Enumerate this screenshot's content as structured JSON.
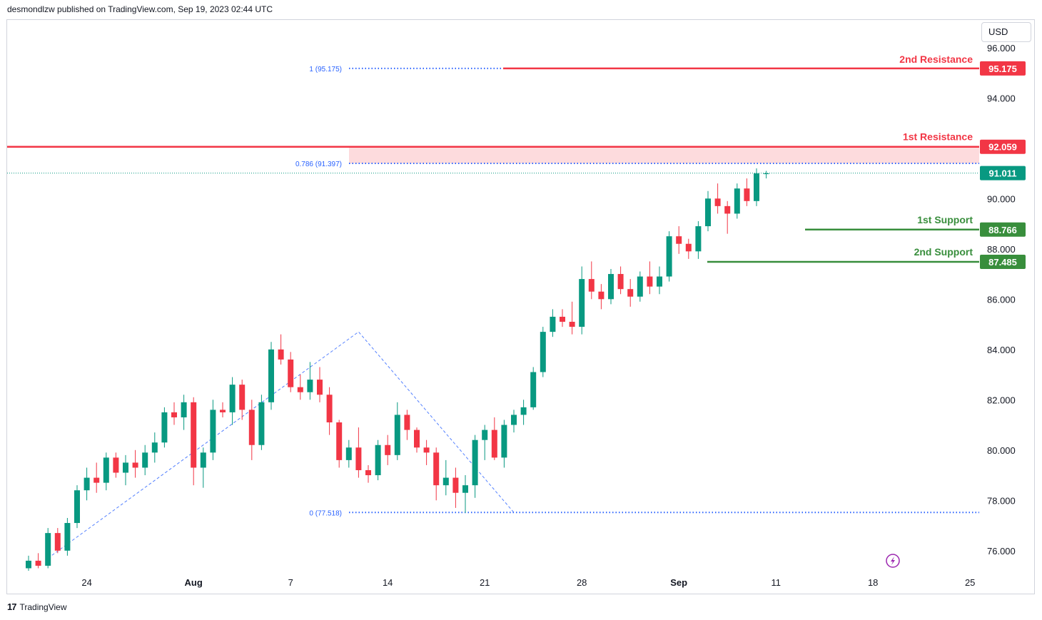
{
  "header": {
    "publisher": "desmondlzw published on TradingView.com, Sep 19, 2023 02:44 UTC"
  },
  "currency": "USD",
  "footer": {
    "logo_text": "TradingView"
  },
  "chart_data": {
    "type": "candlestick",
    "title": "",
    "y_range": [
      75.2,
      97.1
    ],
    "y_ticks": [
      "96.000",
      "94.000",
      "90.000",
      "88.000",
      "86.000",
      "84.000",
      "82.000",
      "80.000",
      "78.000",
      "76.000"
    ],
    "x_ticks": [
      {
        "label": "24",
        "bar": 6
      },
      {
        "label": "Aug",
        "bar": 17,
        "bold": true
      },
      {
        "label": "7",
        "bar": 27
      },
      {
        "label": "14",
        "bar": 37
      },
      {
        "label": "21",
        "bar": 47
      },
      {
        "label": "28",
        "bar": 57
      },
      {
        "label": "Sep",
        "bar": 67,
        "bold": true
      },
      {
        "label": "11",
        "bar": 77
      },
      {
        "label": "18",
        "bar": 87
      },
      {
        "label": "25",
        "bar": 97
      }
    ],
    "levels": [
      {
        "name": "2nd Resistance",
        "value": 95.175,
        "label": "95.175",
        "color": "#f23645"
      },
      {
        "name": "1st Resistance",
        "value": 92.059,
        "label": "92.059",
        "color": "#f23645"
      },
      {
        "name": "1st Support",
        "value": 88.766,
        "label": "88.766",
        "color": "#388e3c"
      },
      {
        "name": "2nd Support",
        "value": 87.485,
        "label": "87.485",
        "color": "#388e3c"
      }
    ],
    "current_price": {
      "value": 91.011,
      "label": "91.011",
      "color": "#089981"
    },
    "fib_levels": [
      {
        "label": "1 (95.175)",
        "value": 95.175
      },
      {
        "label": "0.786 (91.397)",
        "value": 91.397
      },
      {
        "label": "0 (77.518)",
        "value": 77.518
      }
    ],
    "fib_path": [
      [
        2,
        75.7
      ],
      [
        34,
        84.7
      ],
      [
        50,
        77.518
      ]
    ],
    "ohlc": [
      [
        75.3,
        75.8,
        75.2,
        75.6
      ],
      [
        75.6,
        75.9,
        75.3,
        75.4
      ],
      [
        75.4,
        76.9,
        75.3,
        76.7
      ],
      [
        76.7,
        76.9,
        75.9,
        76.0
      ],
      [
        76.0,
        77.3,
        75.8,
        77.1
      ],
      [
        77.1,
        78.6,
        76.9,
        78.4
      ],
      [
        78.4,
        79.3,
        78.0,
        78.9
      ],
      [
        78.9,
        79.5,
        78.3,
        78.7
      ],
      [
        78.7,
        79.9,
        78.4,
        79.7
      ],
      [
        79.7,
        79.9,
        78.9,
        79.1
      ],
      [
        79.1,
        79.8,
        78.6,
        79.5
      ],
      [
        79.5,
        80.0,
        78.9,
        79.3
      ],
      [
        79.3,
        80.2,
        79.0,
        79.9
      ],
      [
        79.9,
        80.7,
        79.5,
        80.3
      ],
      [
        80.3,
        81.7,
        80.1,
        81.5
      ],
      [
        81.5,
        81.9,
        81.0,
        81.3
      ],
      [
        81.3,
        82.2,
        80.8,
        81.9
      ],
      [
        81.9,
        82.1,
        78.6,
        79.3
      ],
      [
        79.3,
        80.1,
        78.5,
        79.9
      ],
      [
        79.9,
        82.0,
        79.6,
        81.6
      ],
      [
        81.6,
        81.9,
        81.3,
        81.5
      ],
      [
        81.5,
        82.9,
        81.0,
        82.6
      ],
      [
        82.6,
        82.8,
        81.2,
        81.6
      ],
      [
        81.6,
        82.0,
        79.6,
        80.2
      ],
      [
        80.2,
        82.2,
        80.0,
        81.9
      ],
      [
        81.9,
        84.3,
        81.6,
        84.0
      ],
      [
        84.0,
        84.6,
        83.4,
        83.6
      ],
      [
        83.6,
        83.9,
        82.3,
        82.5
      ],
      [
        82.5,
        83.0,
        82.0,
        82.3
      ],
      [
        82.3,
        83.5,
        82.0,
        82.8
      ],
      [
        82.8,
        83.3,
        81.9,
        82.2
      ],
      [
        82.2,
        82.5,
        80.6,
        81.1
      ],
      [
        81.1,
        81.2,
        79.3,
        79.6
      ],
      [
        79.6,
        80.4,
        79.3,
        80.1
      ],
      [
        80.1,
        80.9,
        78.9,
        79.2
      ],
      [
        79.2,
        79.4,
        78.7,
        79.0
      ],
      [
        79.0,
        80.4,
        78.8,
        80.2
      ],
      [
        80.2,
        80.6,
        79.4,
        79.8
      ],
      [
        79.8,
        81.9,
        79.6,
        81.4
      ],
      [
        81.4,
        81.6,
        80.4,
        80.8
      ],
      [
        80.8,
        80.9,
        79.9,
        80.1
      ],
      [
        80.1,
        80.4,
        79.4,
        79.9
      ],
      [
        79.9,
        80.1,
        78.0,
        78.6
      ],
      [
        78.6,
        79.6,
        78.2,
        78.9
      ],
      [
        78.9,
        79.3,
        77.7,
        78.3
      ],
      [
        78.3,
        79.0,
        77.5,
        78.6
      ],
      [
        78.6,
        80.6,
        78.1,
        80.4
      ],
      [
        80.4,
        81.0,
        79.6,
        80.8
      ],
      [
        80.8,
        81.3,
        79.6,
        79.7
      ],
      [
        79.7,
        81.2,
        79.3,
        81.0
      ],
      [
        81.0,
        81.6,
        80.7,
        81.4
      ],
      [
        81.4,
        82.0,
        81.0,
        81.7
      ],
      [
        81.7,
        83.3,
        81.6,
        83.1
      ],
      [
        83.1,
        84.9,
        82.9,
        84.7
      ],
      [
        84.7,
        85.6,
        84.5,
        85.3
      ],
      [
        85.3,
        85.6,
        84.9,
        85.1
      ],
      [
        85.1,
        85.9,
        84.6,
        84.9
      ],
      [
        84.9,
        87.3,
        84.6,
        86.8
      ],
      [
        86.8,
        87.5,
        86.0,
        86.3
      ],
      [
        86.3,
        86.6,
        85.6,
        86.0
      ],
      [
        86.0,
        87.2,
        85.8,
        87.0
      ],
      [
        87.0,
        87.3,
        86.2,
        86.4
      ],
      [
        86.4,
        86.8,
        85.7,
        86.1
      ],
      [
        86.1,
        87.1,
        85.9,
        86.9
      ],
      [
        86.9,
        87.5,
        86.2,
        86.5
      ],
      [
        86.5,
        87.3,
        86.2,
        86.9
      ],
      [
        86.9,
        88.7,
        86.7,
        88.5
      ],
      [
        88.5,
        88.9,
        87.8,
        88.2
      ],
      [
        88.2,
        88.4,
        87.6,
        87.9
      ],
      [
        87.9,
        89.1,
        87.6,
        88.9
      ],
      [
        88.9,
        90.3,
        88.7,
        90.0
      ],
      [
        90.0,
        90.6,
        89.4,
        89.7
      ],
      [
        89.7,
        89.9,
        88.6,
        89.4
      ],
      [
        89.4,
        90.6,
        89.2,
        90.4
      ],
      [
        90.4,
        90.8,
        89.7,
        89.9
      ],
      [
        89.9,
        91.2,
        89.7,
        91.0
      ],
      [
        91.0,
        91.1,
        90.8,
        91.0
      ]
    ]
  }
}
